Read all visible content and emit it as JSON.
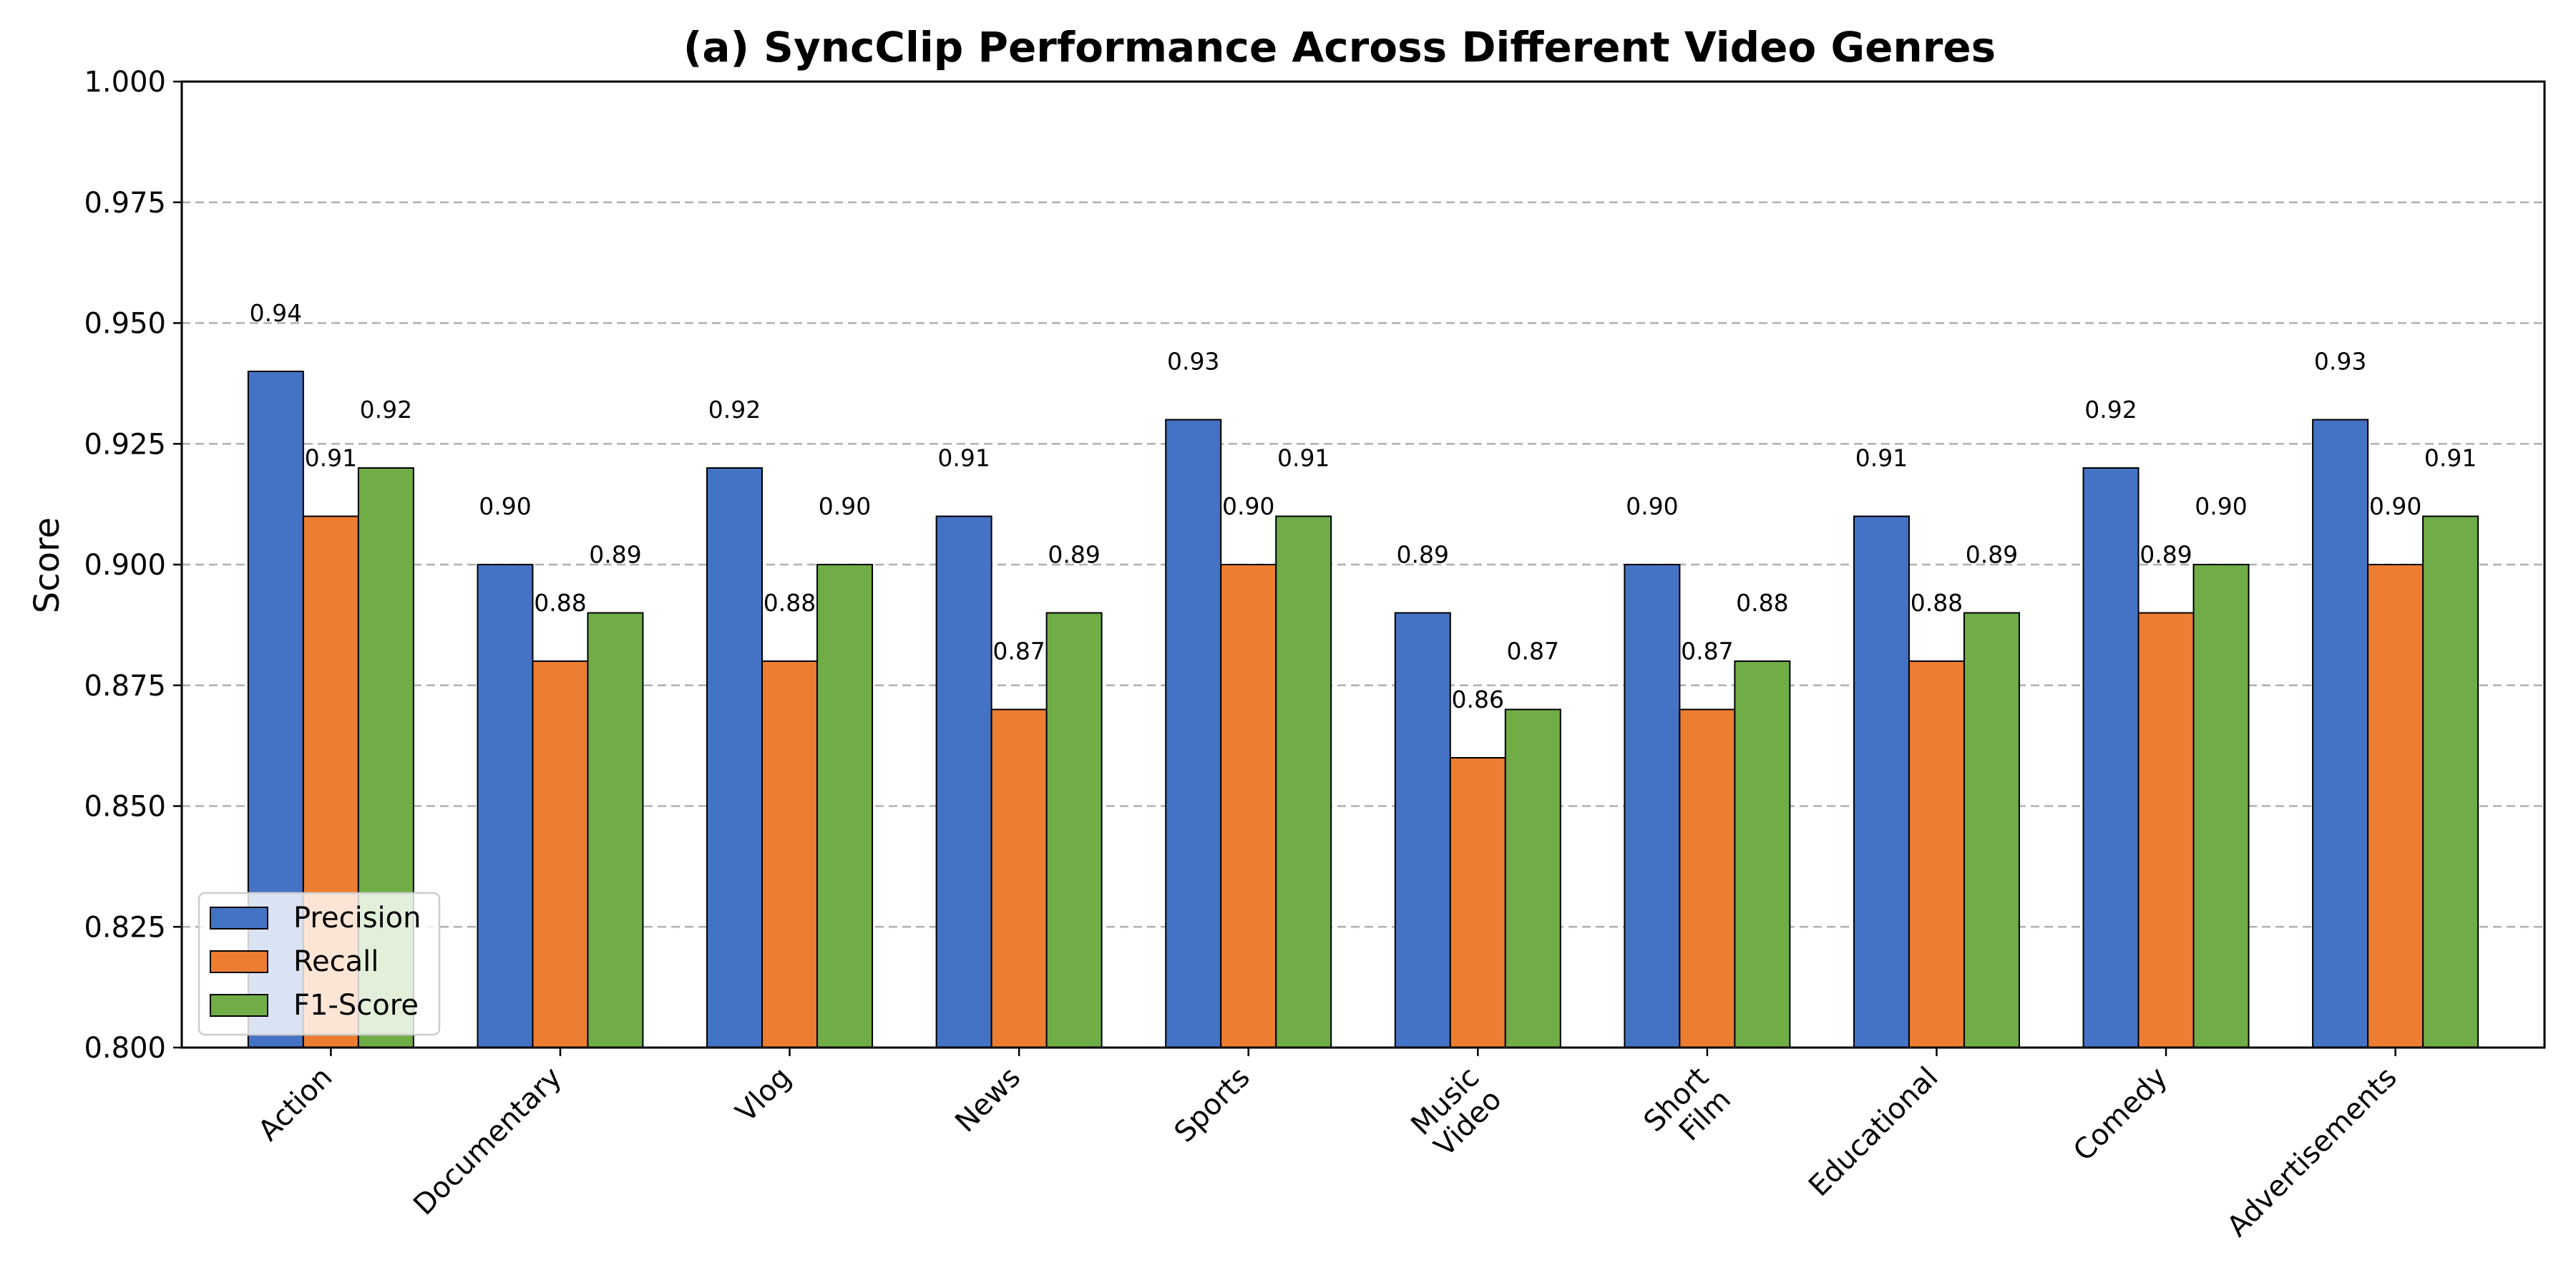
{
  "chart_data": {
    "type": "bar",
    "title": "(a) SyncClip Performance Across Different Video Genres",
    "xlabel": "",
    "ylabel": "Score",
    "ylim": [
      0.8,
      1.0
    ],
    "yticks": [
      "0.800",
      "0.825",
      "0.850",
      "0.875",
      "0.900",
      "0.925",
      "0.950",
      "0.975",
      "1.000"
    ],
    "grid": "y-dashed",
    "legend_position": "lower-left",
    "categories": [
      "Action",
      "Documentary",
      "Vlog",
      "News",
      "Sports",
      "Music\nVideo",
      "Short\nFilm",
      "Educational",
      "Comedy",
      "Advertisements"
    ],
    "series": [
      {
        "name": "Precision",
        "color": "#4472c4",
        "values": [
          0.94,
          0.9,
          0.92,
          0.91,
          0.93,
          0.89,
          0.9,
          0.91,
          0.92,
          0.93
        ]
      },
      {
        "name": "Recall",
        "color": "#ed7d31",
        "values": [
          0.91,
          0.88,
          0.88,
          0.87,
          0.9,
          0.86,
          0.87,
          0.88,
          0.89,
          0.9
        ]
      },
      {
        "name": "F1-Score",
        "color": "#70ad47",
        "values": [
          0.92,
          0.89,
          0.9,
          0.89,
          0.91,
          0.87,
          0.88,
          0.89,
          0.9,
          0.91
        ]
      }
    ]
  }
}
